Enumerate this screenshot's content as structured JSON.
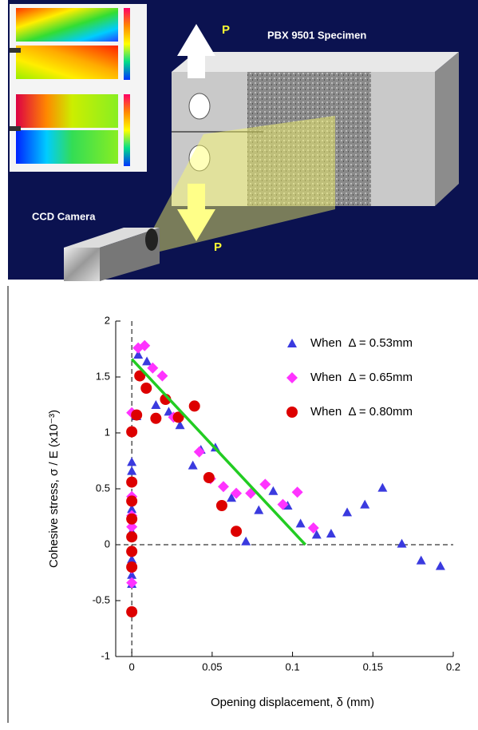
{
  "illustration": {
    "labels": [
      "P",
      "PBX 9501 Specimen",
      "CCD Camera",
      "P"
    ]
  },
  "chart_data": {
    "type": "scatter",
    "x_label": "Opening displacement,   δ  (mm)",
    "y_label": "Cohesive stress,  σ / E   (x10⁻³)",
    "xlim": [
      -0.01,
      0.2
    ],
    "xticks": [
      0,
      0.05,
      0.1,
      0.15,
      0.2
    ],
    "ylim": [
      -1,
      2
    ],
    "yticks": [
      -1,
      -0.5,
      0,
      0.5,
      1,
      1.5,
      2
    ],
    "legend": "upper right",
    "series": [
      {
        "name": "When  Δ = 0.53mm",
        "color": "#3a3adf",
        "marker": "triangle",
        "x": [
          0.004,
          0.0094,
          0.003,
          0.015,
          0,
          0,
          0.023,
          0.03,
          0.038,
          0.043,
          0.052,
          0.062,
          0.071,
          0.079,
          0.088,
          0.097,
          0.105,
          0.115,
          0.124,
          0.134,
          0.145,
          0.156,
          0.168,
          0.18,
          0.192,
          0,
          0,
          0,
          0,
          0
        ],
        "values": [
          1.7,
          1.64,
          1.15,
          1.25,
          0.74,
          0.66,
          1.19,
          1.07,
          0.71,
          0.85,
          0.87,
          0.42,
          0.03,
          0.31,
          0.48,
          0.35,
          0.19,
          0.09,
          0.1,
          0.29,
          0.36,
          0.51,
          0.01,
          -0.14,
          -0.19,
          0.32,
          0.12,
          -0.13,
          -0.27,
          -0.35
        ]
      },
      {
        "name": "When  Δ = 0.65mm",
        "color": "#ff33ff",
        "marker": "diamond",
        "x": [
          0.004,
          0.008,
          0.013,
          0.019,
          0,
          0.026,
          0,
          0,
          0,
          0,
          0,
          0,
          0,
          0.042,
          0.049,
          0.057,
          0.065,
          0.074,
          0.083,
          0.094,
          0.103,
          0.113
        ],
        "values": [
          1.76,
          1.78,
          1.58,
          1.51,
          1.18,
          1.14,
          0.43,
          0.39,
          0.26,
          0.16,
          -0.06,
          -0.21,
          -0.34,
          0.83,
          0.59,
          0.52,
          0.46,
          0.46,
          0.54,
          0.36,
          0.47,
          0.15
        ]
      },
      {
        "name": "When  Δ = 0.80mm",
        "color": "#dd0000",
        "marker": "circle",
        "x": [
          0.005,
          0.009,
          0.003,
          0.015,
          0.021,
          0.029,
          0.039,
          0.048,
          0.056,
          0.065,
          0,
          0,
          0,
          0,
          0,
          0,
          0,
          0
        ],
        "values": [
          1.51,
          1.4,
          1.16,
          1.13,
          1.3,
          1.14,
          1.24,
          0.6,
          0.35,
          0.12,
          1.01,
          0.56,
          0.39,
          0.23,
          0.07,
          -0.06,
          -0.2,
          -0.6
        ]
      },
      {
        "color": "#22cc22",
        "marker": "line",
        "x": [
          0,
          0.108
        ],
        "values": [
          1.66,
          0
        ]
      }
    ]
  }
}
